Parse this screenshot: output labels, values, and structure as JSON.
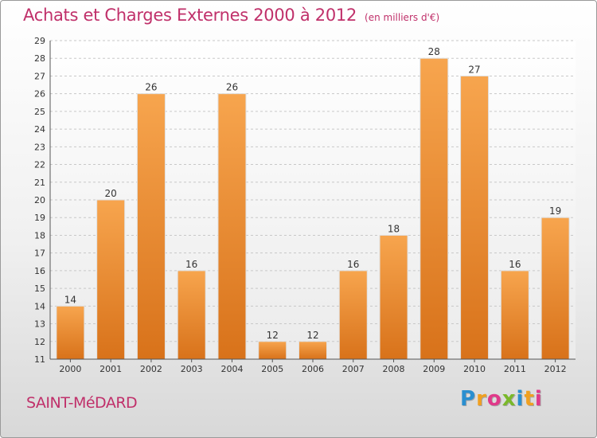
{
  "header": {
    "title": "Achats et Charges Externes 2000 à 2012",
    "subtitle": "(en milliers d'€)"
  },
  "footer": {
    "commune": "SAINT-MéDARD",
    "logo_text": "Proxiti",
    "logo_letters": [
      "P",
      "r",
      "o",
      "x",
      "i",
      "t",
      "i"
    ]
  },
  "colors": {
    "accent": "#c0306a",
    "bar_top": "#f7a54e",
    "bar_bottom": "#d8721a",
    "grid": "#c8c8c8"
  },
  "chart_data": {
    "type": "bar",
    "categories": [
      "2000",
      "2001",
      "2002",
      "2003",
      "2004",
      "2005",
      "2006",
      "2007",
      "2008",
      "2009",
      "2010",
      "2011",
      "2012"
    ],
    "values": [
      14,
      20,
      26,
      16,
      26,
      12,
      12,
      16,
      18,
      28,
      27,
      16,
      19
    ],
    "title": "Achats et Charges Externes 2000 à 2012",
    "subtitle": "(en milliers d'€)",
    "xlabel": "",
    "ylabel": "",
    "ylim": [
      11,
      29
    ],
    "yticks": [
      11,
      12,
      13,
      14,
      15,
      16,
      17,
      18,
      19,
      20,
      21,
      22,
      23,
      24,
      25,
      26,
      27,
      28,
      29
    ],
    "grid": true,
    "data_labels": true
  }
}
